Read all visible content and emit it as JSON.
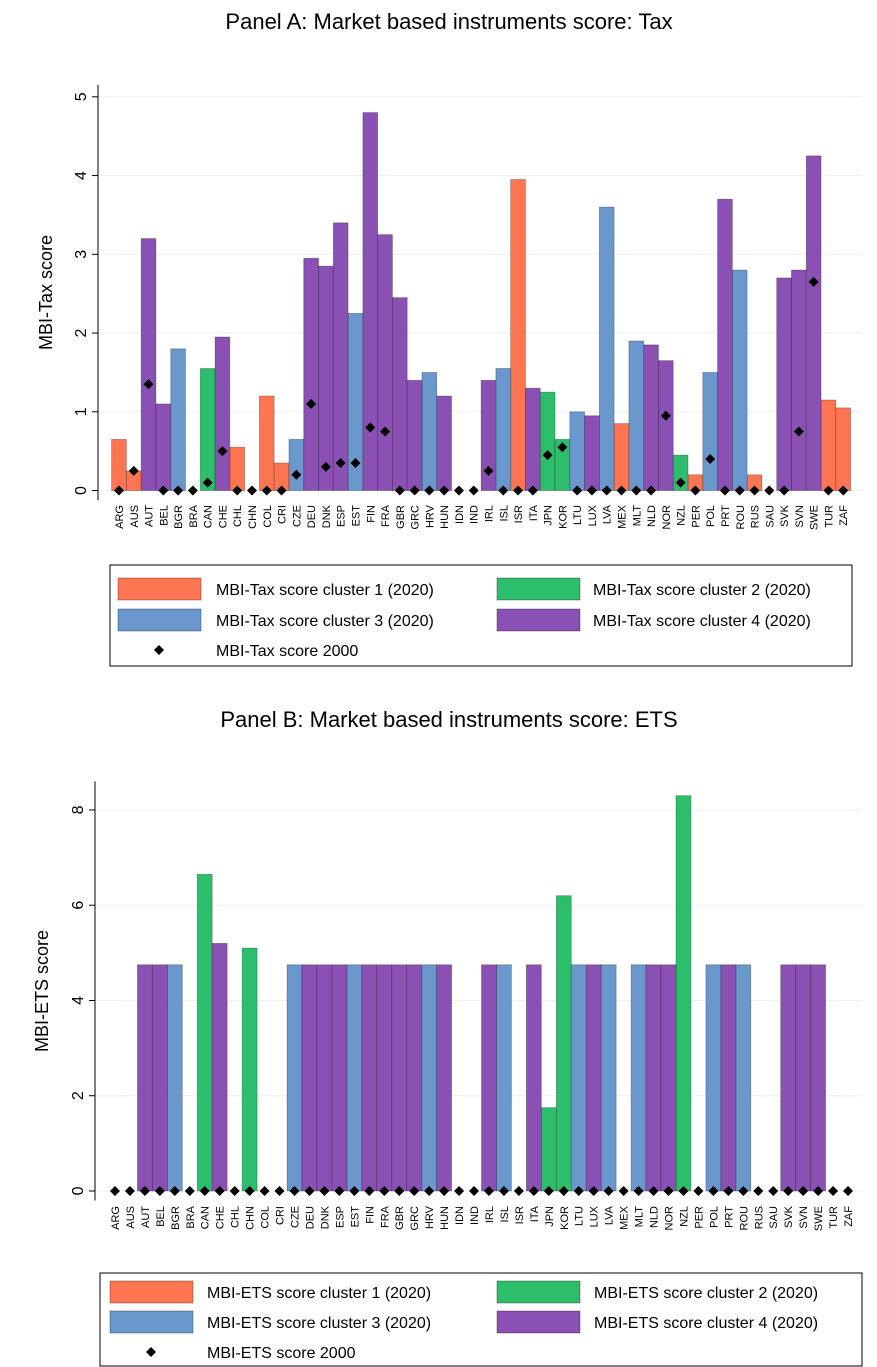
{
  "chart_data": [
    {
      "type": "bar",
      "title": "Panel A: Market based instruments score: Tax",
      "y_label": "MBI-Tax score",
      "categories": [
        "ARG",
        "AUS",
        "AUT",
        "BEL",
        "BGR",
        "BRA",
        "CAN",
        "CHE",
        "CHL",
        "CHN",
        "COL",
        "CRI",
        "CZE",
        "DEU",
        "DNK",
        "ESP",
        "EST",
        "FIN",
        "FRA",
        "GBR",
        "GRC",
        "HRV",
        "HUN",
        "IDN",
        "IND",
        "IRL",
        "ISL",
        "ISR",
        "ITA",
        "JPN",
        "KOR",
        "LTU",
        "LUX",
        "LVA",
        "MEX",
        "MLT",
        "NLD",
        "NOR",
        "NZL",
        "PER",
        "POL",
        "PRT",
        "ROU",
        "RUS",
        "SAU",
        "SVK",
        "SVN",
        "SWE",
        "TUR",
        "ZAF"
      ],
      "series": [
        {
          "name": "MBI-Tax score cluster 1 (2020)",
          "color": "#ff7552",
          "values": [
            0.65,
            0.25,
            null,
            null,
            null,
            null,
            null,
            null,
            0.55,
            null,
            1.2,
            0.35,
            null,
            null,
            null,
            null,
            null,
            null,
            null,
            null,
            null,
            null,
            null,
            null,
            null,
            null,
            null,
            3.95,
            null,
            null,
            null,
            null,
            null,
            null,
            0.85,
            null,
            null,
            null,
            null,
            0.2,
            null,
            null,
            null,
            0.2,
            null,
            null,
            null,
            null,
            1.15,
            1.05
          ]
        },
        {
          "name": "MBI-Tax score cluster 2 (2020)",
          "color": "#2dbe6c",
          "values": [
            null,
            null,
            null,
            null,
            null,
            null,
            1.55,
            null,
            null,
            null,
            null,
            null,
            null,
            null,
            null,
            null,
            null,
            null,
            null,
            null,
            null,
            null,
            null,
            null,
            null,
            null,
            null,
            null,
            null,
            1.25,
            0.65,
            null,
            null,
            null,
            null,
            null,
            null,
            null,
            0.45,
            null,
            null,
            null,
            null,
            null,
            null,
            null,
            null,
            null,
            null,
            null
          ]
        },
        {
          "name": "MBI-Tax score cluster 3 (2020)",
          "color": "#6a97cc",
          "values": [
            null,
            null,
            null,
            null,
            1.8,
            null,
            null,
            null,
            null,
            null,
            null,
            null,
            0.65,
            null,
            null,
            null,
            2.25,
            null,
            null,
            null,
            null,
            1.5,
            null,
            null,
            null,
            null,
            1.55,
            null,
            null,
            null,
            null,
            1.0,
            null,
            3.6,
            null,
            1.9,
            null,
            null,
            null,
            null,
            1.5,
            null,
            2.8,
            null,
            null,
            null,
            null,
            null,
            null,
            null
          ]
        },
        {
          "name": "MBI-Tax score cluster 4 (2020)",
          "color": "#8a50b4",
          "values": [
            null,
            null,
            3.2,
            1.1,
            null,
            null,
            null,
            1.95,
            null,
            null,
            null,
            null,
            null,
            2.95,
            2.85,
            3.4,
            null,
            4.8,
            3.25,
            2.45,
            1.4,
            null,
            1.2,
            null,
            null,
            1.4,
            null,
            null,
            1.3,
            null,
            null,
            null,
            0.95,
            null,
            null,
            null,
            1.85,
            1.65,
            null,
            null,
            null,
            3.7,
            null,
            null,
            null,
            2.7,
            2.8,
            4.25,
            null,
            null
          ]
        },
        {
          "name": "MBI-Tax score 2000",
          "color": "#000000",
          "marker": "diamond",
          "values": [
            0,
            0.25,
            1.35,
            0,
            0,
            0,
            0.1,
            0.5,
            0,
            0,
            0,
            0,
            0.2,
            1.1,
            0.3,
            0.35,
            0.35,
            0.8,
            0.75,
            0,
            0,
            0,
            0,
            0,
            0,
            0.25,
            0,
            0,
            0,
            0.45,
            0.55,
            0,
            0,
            0,
            0,
            0,
            0,
            0.95,
            0.1,
            0,
            0.4,
            0,
            0,
            0,
            0,
            0,
            0.75,
            2.65,
            0,
            0
          ]
        }
      ],
      "ylim": [
        -0.12,
        5.15
      ],
      "yticks": [
        0,
        1,
        2,
        3,
        4,
        5
      ],
      "grid": true
    },
    {
      "type": "bar",
      "title": "Panel B: Market based instruments score: ETS",
      "y_label": "MBI-ETS score",
      "categories": [
        "ARG",
        "AUS",
        "AUT",
        "BEL",
        "BGR",
        "BRA",
        "CAN",
        "CHE",
        "CHL",
        "CHN",
        "COL",
        "CRI",
        "CZE",
        "DEU",
        "DNK",
        "ESP",
        "EST",
        "FIN",
        "FRA",
        "GBR",
        "GRC",
        "HRV",
        "HUN",
        "IDN",
        "IND",
        "IRL",
        "ISL",
        "ISR",
        "ITA",
        "JPN",
        "KOR",
        "LTU",
        "LUX",
        "LVA",
        "MEX",
        "MLT",
        "NLD",
        "NOR",
        "NZL",
        "PER",
        "POL",
        "PRT",
        "ROU",
        "RUS",
        "SAU",
        "SVK",
        "SVN",
        "SWE",
        "TUR",
        "ZAF"
      ],
      "series": [
        {
          "name": "MBI-ETS score cluster 1 (2020)",
          "color": "#ff7552",
          "values": [
            null,
            null,
            null,
            null,
            null,
            null,
            null,
            null,
            null,
            null,
            null,
            null,
            null,
            null,
            null,
            null,
            null,
            null,
            null,
            null,
            null,
            null,
            null,
            null,
            null,
            null,
            null,
            null,
            null,
            null,
            null,
            null,
            null,
            null,
            null,
            null,
            null,
            null,
            null,
            null,
            null,
            null,
            null,
            null,
            null,
            null,
            null,
            null,
            null,
            null
          ]
        },
        {
          "name": "MBI-ETS score cluster 2 (2020)",
          "color": "#2dbe6c",
          "values": [
            null,
            null,
            null,
            null,
            null,
            null,
            6.65,
            null,
            null,
            5.1,
            null,
            null,
            null,
            null,
            null,
            null,
            null,
            null,
            null,
            null,
            null,
            null,
            null,
            null,
            null,
            null,
            null,
            null,
            null,
            1.75,
            6.2,
            null,
            null,
            null,
            null,
            null,
            null,
            null,
            8.3,
            null,
            null,
            null,
            null,
            null,
            null,
            null,
            null,
            null,
            null,
            null
          ]
        },
        {
          "name": "MBI-ETS score cluster 3 (2020)",
          "color": "#6a97cc",
          "values": [
            null,
            null,
            null,
            null,
            4.75,
            null,
            null,
            null,
            null,
            null,
            null,
            null,
            4.75,
            null,
            null,
            null,
            4.75,
            null,
            null,
            null,
            null,
            4.75,
            null,
            null,
            null,
            null,
            4.75,
            null,
            null,
            null,
            null,
            4.75,
            null,
            4.75,
            null,
            4.75,
            null,
            null,
            null,
            null,
            4.75,
            null,
            4.75,
            null,
            null,
            null,
            null,
            null,
            null,
            null
          ]
        },
        {
          "name": "MBI-ETS score cluster 4 (2020)",
          "color": "#8a50b4",
          "values": [
            null,
            null,
            4.75,
            4.75,
            null,
            null,
            null,
            5.2,
            null,
            null,
            null,
            null,
            null,
            4.75,
            4.75,
            4.75,
            null,
            4.75,
            4.75,
            4.75,
            4.75,
            null,
            4.75,
            null,
            null,
            4.75,
            null,
            null,
            4.75,
            null,
            null,
            null,
            4.75,
            null,
            null,
            null,
            4.75,
            4.75,
            null,
            null,
            null,
            4.75,
            null,
            null,
            null,
            4.75,
            4.75,
            4.75,
            null,
            null
          ]
        },
        {
          "name": "MBI-ETS score 2000",
          "color": "#000000",
          "marker": "diamond",
          "values": [
            0,
            0,
            0,
            0,
            0,
            0,
            0,
            0,
            0,
            0,
            0,
            0,
            0,
            0,
            0,
            0,
            0,
            0,
            0,
            0,
            0,
            0,
            0,
            0,
            0,
            0,
            0,
            0,
            0,
            0,
            0,
            0,
            0,
            0,
            0,
            0,
            0,
            0,
            0,
            0,
            0,
            0,
            0,
            0,
            0,
            0,
            0,
            0,
            0,
            0
          ]
        }
      ],
      "ylim": [
        -0.2,
        8.6
      ],
      "yticks": [
        0,
        2,
        4,
        6,
        8
      ],
      "grid": true
    }
  ]
}
